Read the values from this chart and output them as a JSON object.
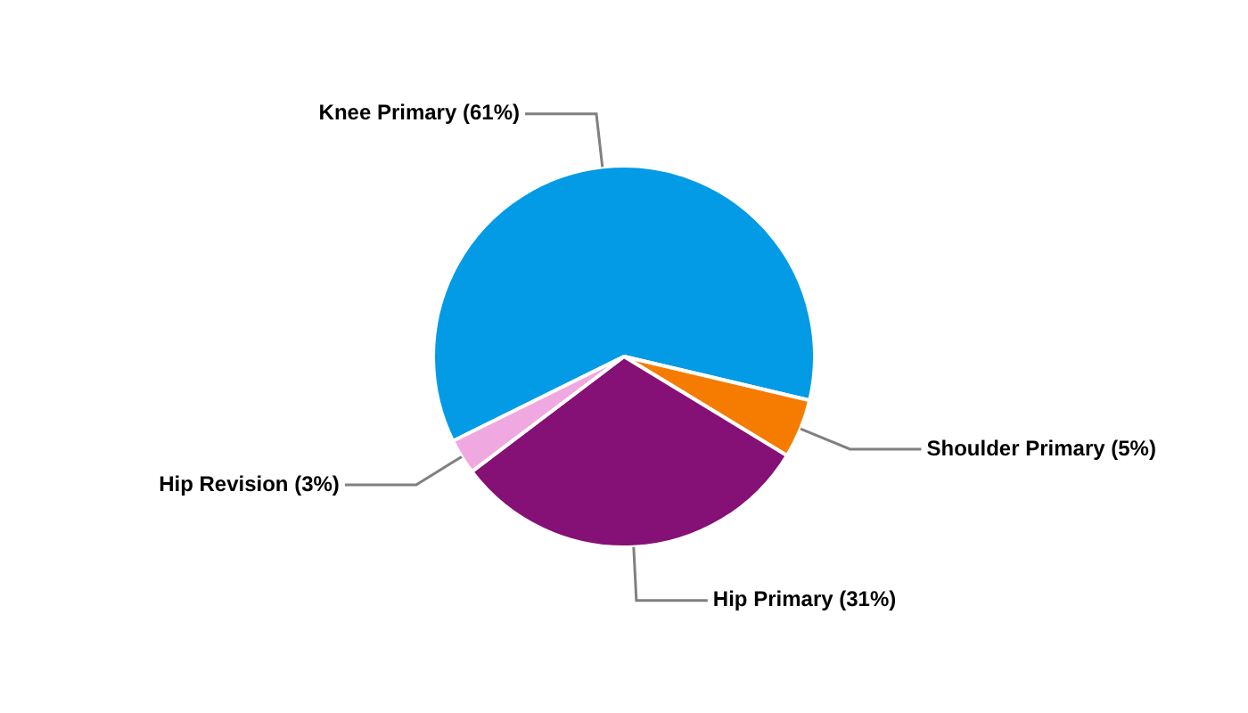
{
  "chart_data": {
    "type": "pie",
    "categories": [
      "Knee Primary",
      "Shoulder Primary",
      "Hip Primary",
      "Hip Revision"
    ],
    "values": [
      61,
      5,
      31,
      3
    ],
    "value_labels": [
      "(61%)",
      "(5%)",
      "(31%)",
      "(3%)"
    ],
    "colors": [
      "#039be5",
      "#f57c00",
      "#851076",
      "#f0a8e0"
    ],
    "legend": false
  }
}
